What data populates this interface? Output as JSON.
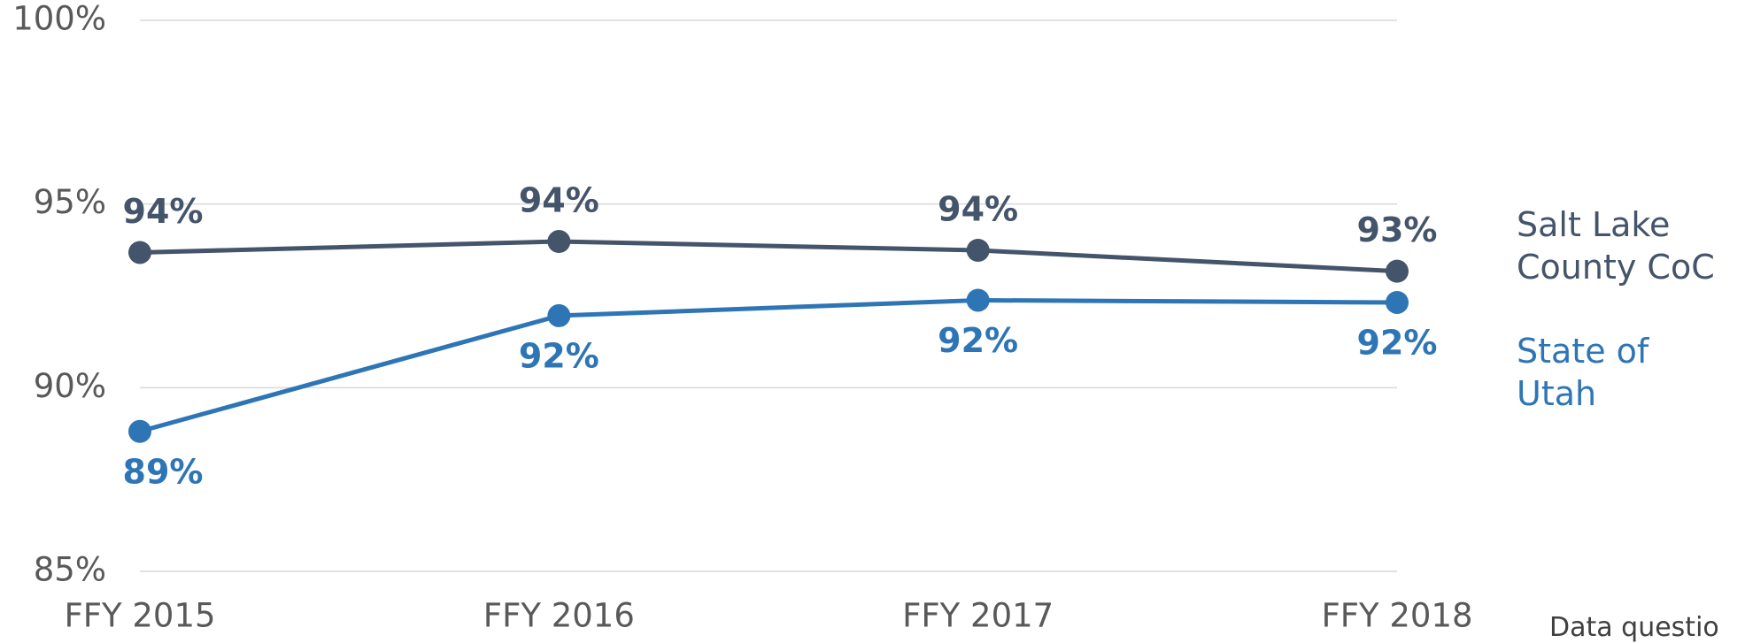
{
  "chart_data": {
    "type": "line",
    "categories": [
      "FFY 2015",
      "FFY 2016",
      "FFY 2017",
      "FFY 2018"
    ],
    "series": [
      {
        "name": "Salt Lake County CoC",
        "color": "#44546a",
        "values": [
          93.68,
          93.98,
          93.74,
          93.17
        ],
        "value_labels": [
          "94%",
          "94%",
          "94%",
          "93%"
        ]
      },
      {
        "name": "State of Utah",
        "color": "#2e75b6",
        "values": [
          88.81,
          91.96,
          92.38,
          92.32
        ],
        "value_labels": [
          "89%",
          "92%",
          "92%",
          "92%"
        ]
      }
    ],
    "ylim": [
      85,
      100
    ],
    "yticks": [
      {
        "value": 85,
        "label": "85%"
      },
      {
        "value": 90,
        "label": "90%"
      },
      {
        "value": 95,
        "label": "95%"
      },
      {
        "value": 100,
        "label": "100%"
      }
    ],
    "grid": true,
    "legend": "right",
    "footnote": "Data questio"
  }
}
